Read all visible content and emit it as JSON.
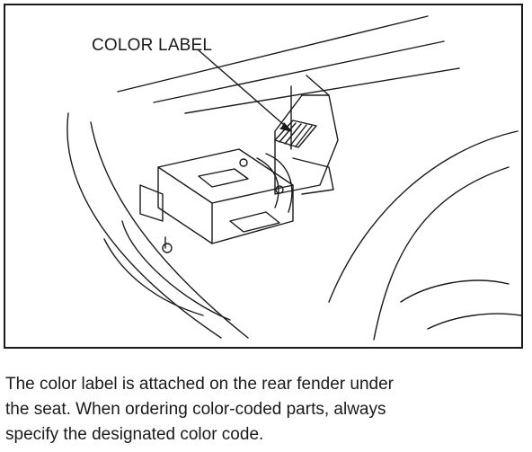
{
  "figure": {
    "callout_label": "COLOR LABEL"
  },
  "caption": {
    "lines": [
      "The color label is attached on the rear fender under",
      "the seat. When ordering color-coded parts, always",
      "specify the designated color code."
    ]
  },
  "colors": {
    "ink": "#1a1a1a",
    "paper": "#ffffff"
  }
}
